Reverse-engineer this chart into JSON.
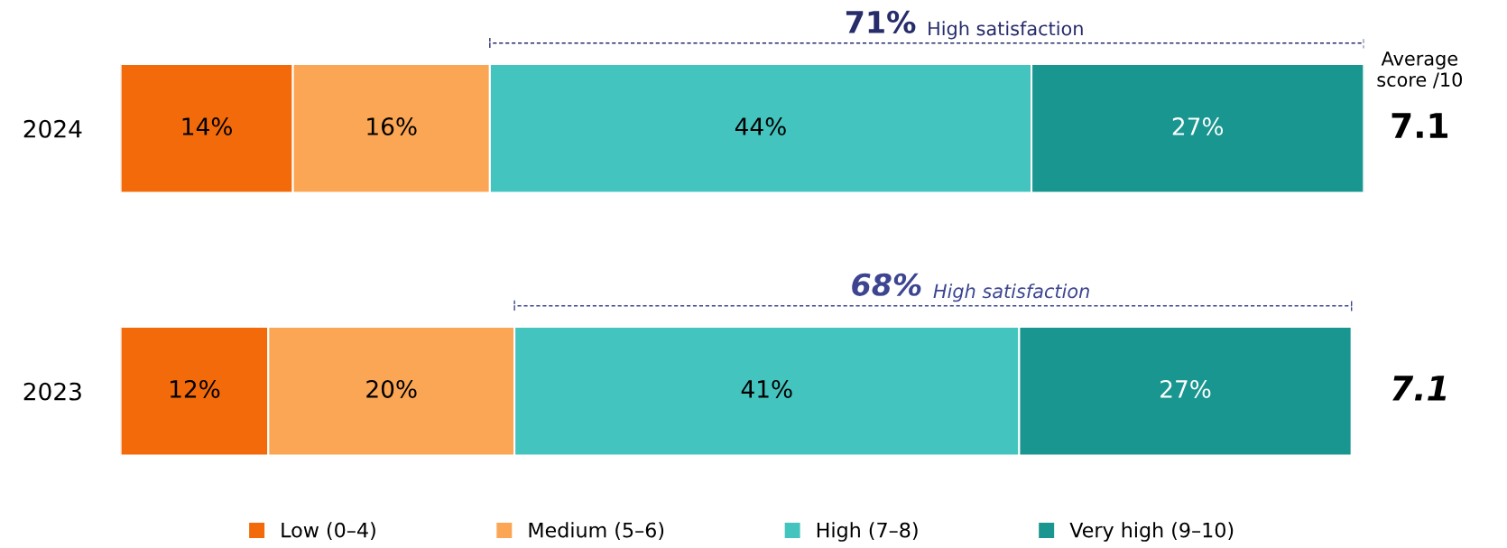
{
  "chart_data": {
    "type": "bar",
    "orientation": "horizontal",
    "stacked": true,
    "grid": false,
    "legend": "bottom",
    "categories": [
      "2024",
      "2023"
    ],
    "series": [
      {
        "name": "Low (0–4)",
        "color": "#f26a0a",
        "values": [
          14,
          12
        ],
        "value_labels": [
          "14%",
          "12%"
        ]
      },
      {
        "name": "Medium (5–6)",
        "color": "#fba654",
        "values": [
          16,
          20
        ],
        "value_labels": [
          "16%",
          "20%"
        ]
      },
      {
        "name": "High (7–8)",
        "color": "#44c4bf",
        "values": [
          44,
          41
        ],
        "value_labels": [
          "44%",
          "41%"
        ]
      },
      {
        "name": "Very high (9–10)",
        "color": "#1a9690",
        "values": [
          27,
          27
        ],
        "value_labels": [
          "27%",
          "27%"
        ]
      }
    ],
    "annotations": [
      "71% High satisfaction",
      "68% High satisfaction",
      "Average score /10",
      "7.1",
      "7.1"
    ]
  }
}
